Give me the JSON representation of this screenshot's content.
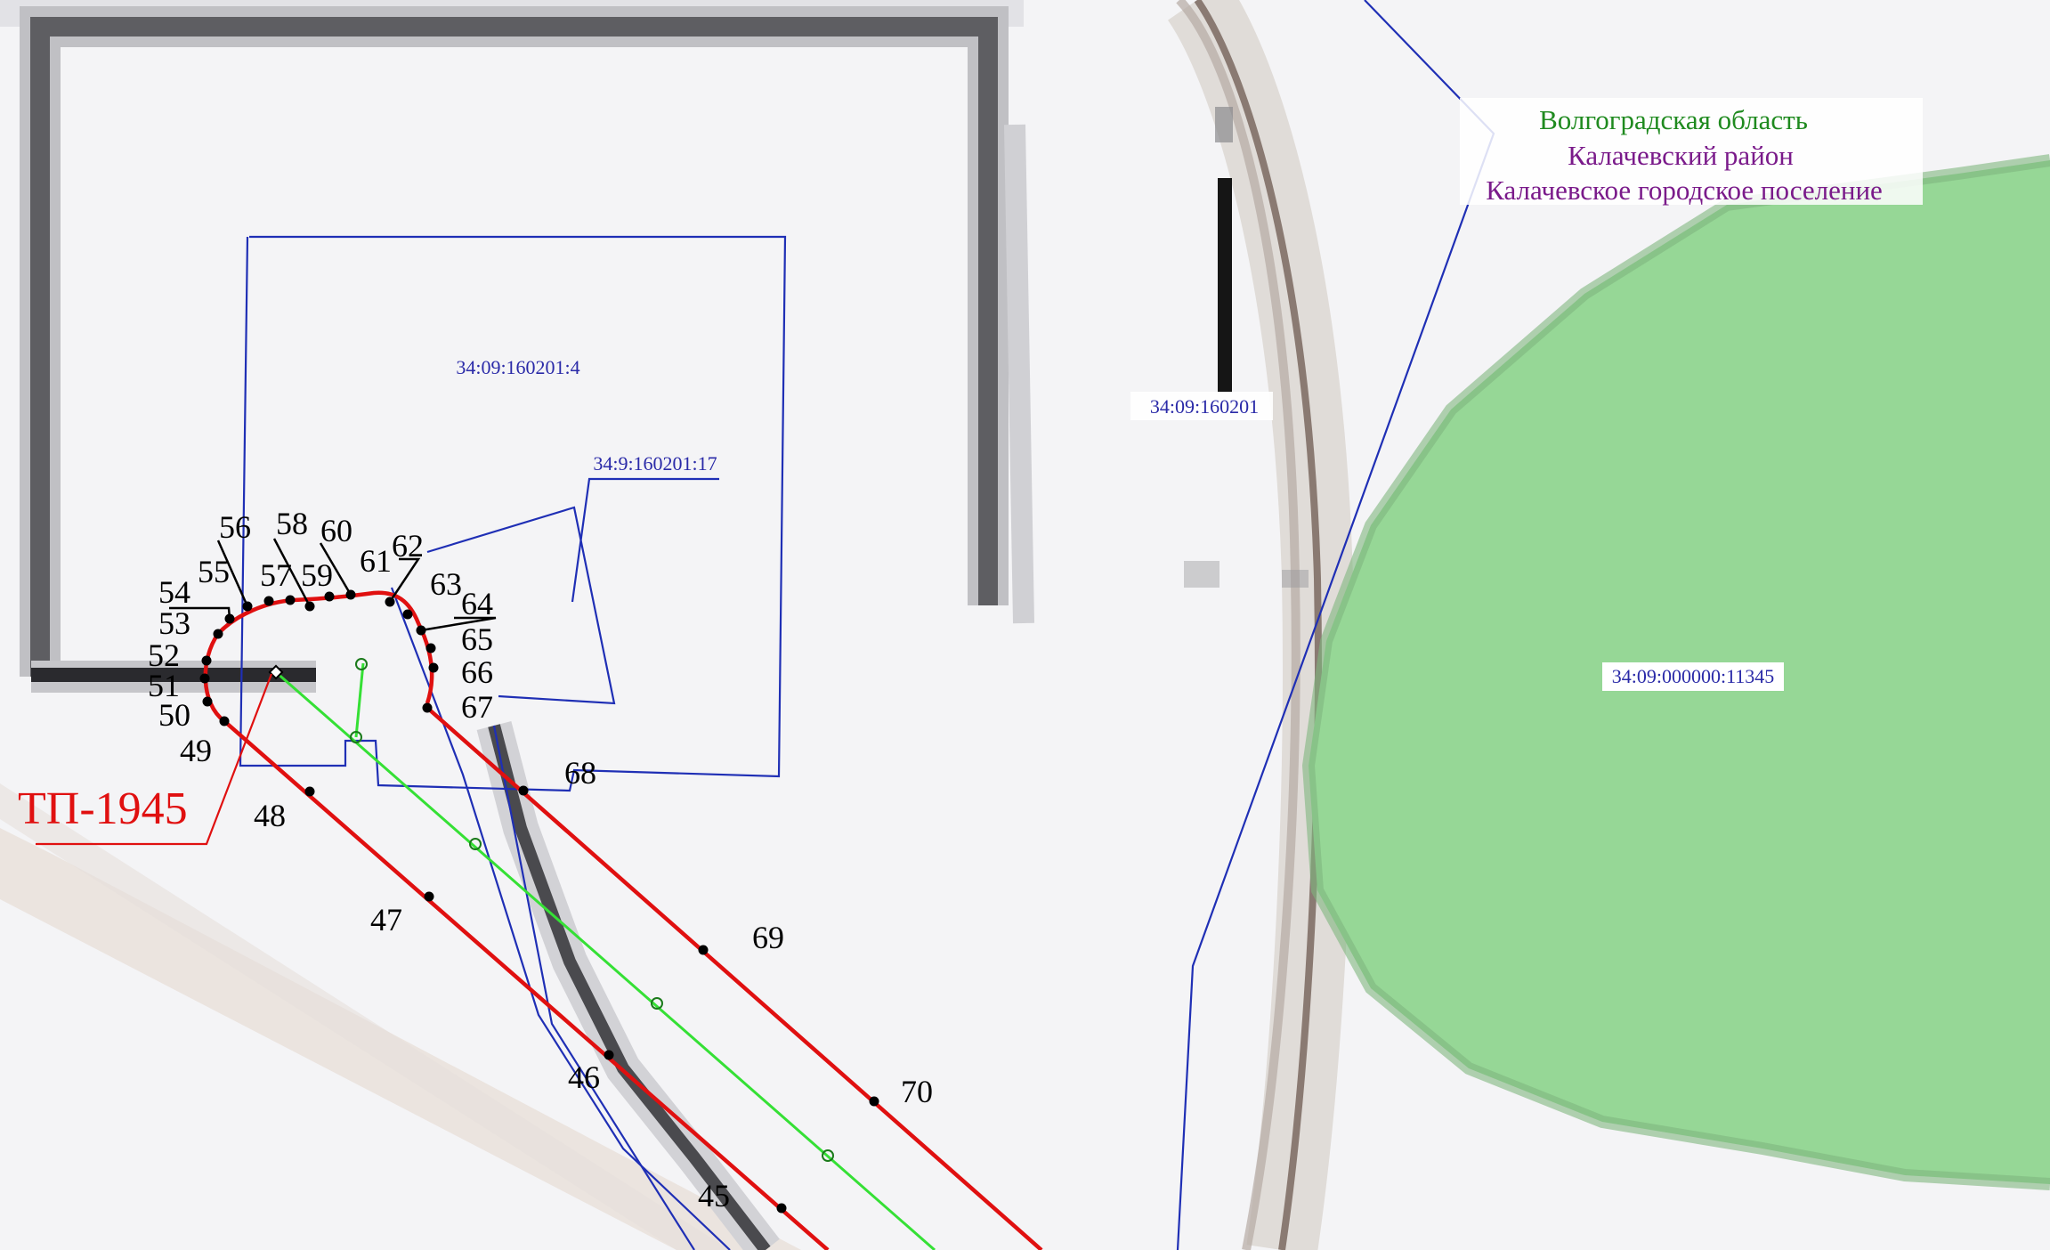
{
  "colors": {
    "parcel_border": "#1f2fb5",
    "cable_line": "#e01010",
    "green_line": "#35e035",
    "green_area": "#96d796",
    "region_green": "#1f8a1f",
    "region_purple": "#7a1a8a",
    "cadastral_text": "#2a2aa8"
  },
  "region": {
    "oblast": "Волгоградская область",
    "raion": "Калачевский район",
    "settlement": "Калачевское городское поселение"
  },
  "cadastral": {
    "parcel_4": "34:09:160201:4",
    "parcel_17": "34:9:160201:17",
    "quarter": "34:09:160201",
    "parcel_11345": "34:09:000000:11345"
  },
  "substation": {
    "label": "ТП-1945"
  },
  "points": {
    "p45": "45",
    "p46": "46",
    "p47": "47",
    "p48": "48",
    "p49": "49",
    "p50": "50",
    "p51": "51",
    "p52": "52",
    "p53": "53",
    "p54": "54",
    "p55": "55",
    "p56": "56",
    "p57": "57",
    "p58": "58",
    "p59": "59",
    "p60": "60",
    "p61": "61",
    "p62": "62",
    "p63": "63",
    "p64": "64",
    "p65": "65",
    "p66": "66",
    "p67": "67",
    "p68": "68",
    "p69": "69",
    "p70": "70"
  }
}
